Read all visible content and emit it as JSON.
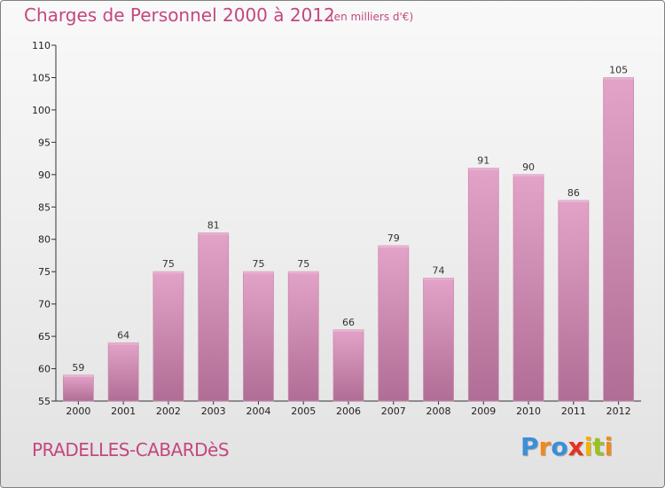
{
  "header": {
    "title": "Charges de Personnel 2000 à 2012",
    "subtitle": "(en milliers d'€)"
  },
  "footer": {
    "commune": "PRADELLES-CABARDèS",
    "logo_letters": [
      "P",
      "r",
      "o",
      "x",
      "i",
      "t",
      "i"
    ],
    "logo_colors": [
      "#3a8fd8",
      "#f08a1c",
      "#3a8fd8",
      "#e6321e",
      "#f0b400",
      "#9bc21c",
      "#f08a1c"
    ]
  },
  "chart_data": {
    "type": "bar",
    "title": "Charges de Personnel 2000 à 2012",
    "subtitle": "(en milliers d'€)",
    "categories": [
      "2000",
      "2001",
      "2002",
      "2003",
      "2004",
      "2005",
      "2006",
      "2007",
      "2008",
      "2009",
      "2010",
      "2011",
      "2012"
    ],
    "values": [
      59,
      64,
      75,
      81,
      75,
      75,
      66,
      79,
      74,
      91,
      90,
      86,
      105
    ],
    "ylim": [
      55,
      110
    ],
    "yticks": [
      55,
      60,
      65,
      70,
      75,
      80,
      85,
      90,
      95,
      100,
      105,
      110
    ],
    "grid": false,
    "bar_color": "#d98bb6"
  }
}
